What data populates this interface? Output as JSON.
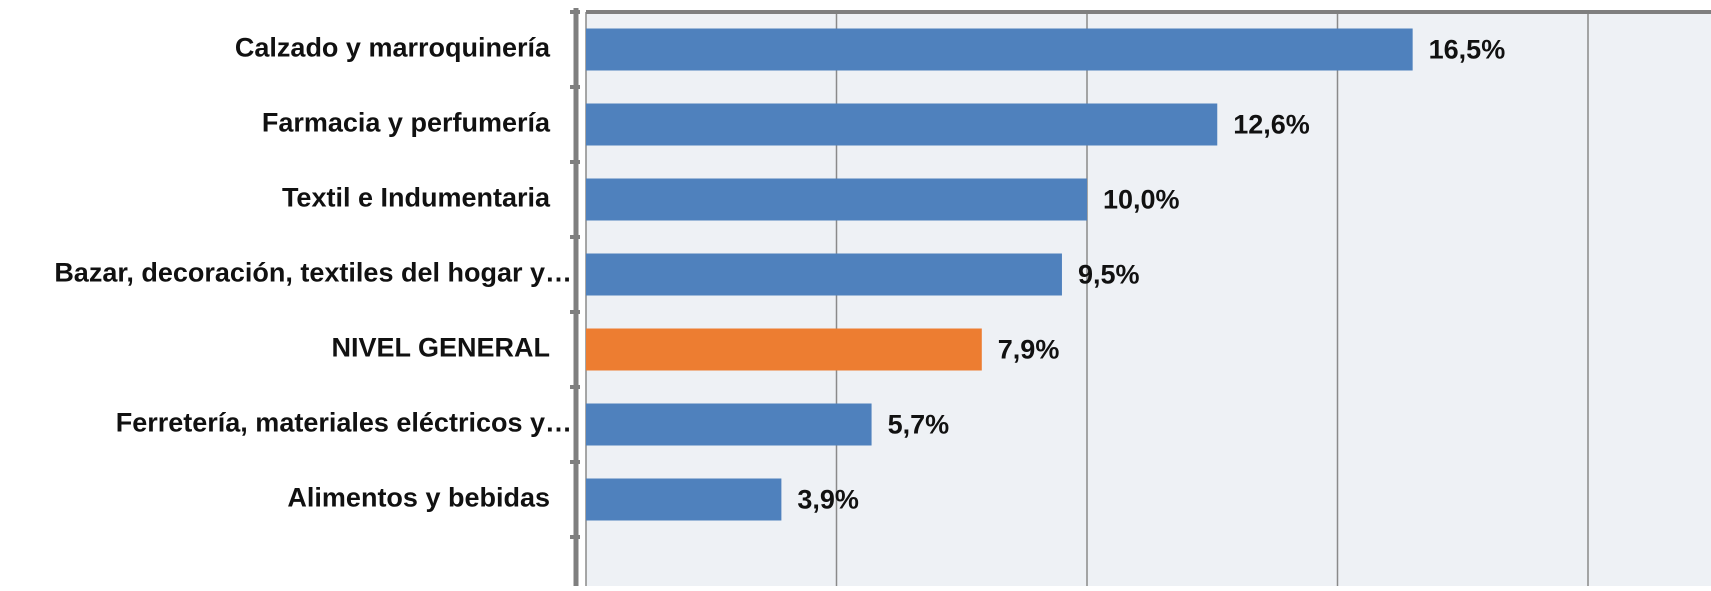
{
  "chart_data": {
    "type": "bar",
    "orientation": "horizontal",
    "categories": [
      "Calzado y marroquinería",
      "Farmacia y perfumería",
      "Textil e Indumentaria",
      "Bazar, decoración, textiles del hogar y…",
      "NIVEL GENERAL",
      "Ferretería, materiales eléctricos y…",
      "Alimentos y bebidas"
    ],
    "values": [
      16.5,
      12.6,
      10.0,
      9.5,
      7.9,
      5.7,
      3.9
    ],
    "value_labels": [
      "16,5%",
      "12,6%",
      "10,0%",
      "9,5%",
      "7,9%",
      "5,7%",
      "3,9%"
    ],
    "colors": [
      "#4f81bd",
      "#4f81bd",
      "#4f81bd",
      "#4f81bd",
      "#ed7d31",
      "#4f81bd",
      "#4f81bd"
    ],
    "xlim": [
      0,
      20
    ],
    "xticks": [
      0,
      5,
      10,
      15,
      20
    ],
    "grid": true
  }
}
